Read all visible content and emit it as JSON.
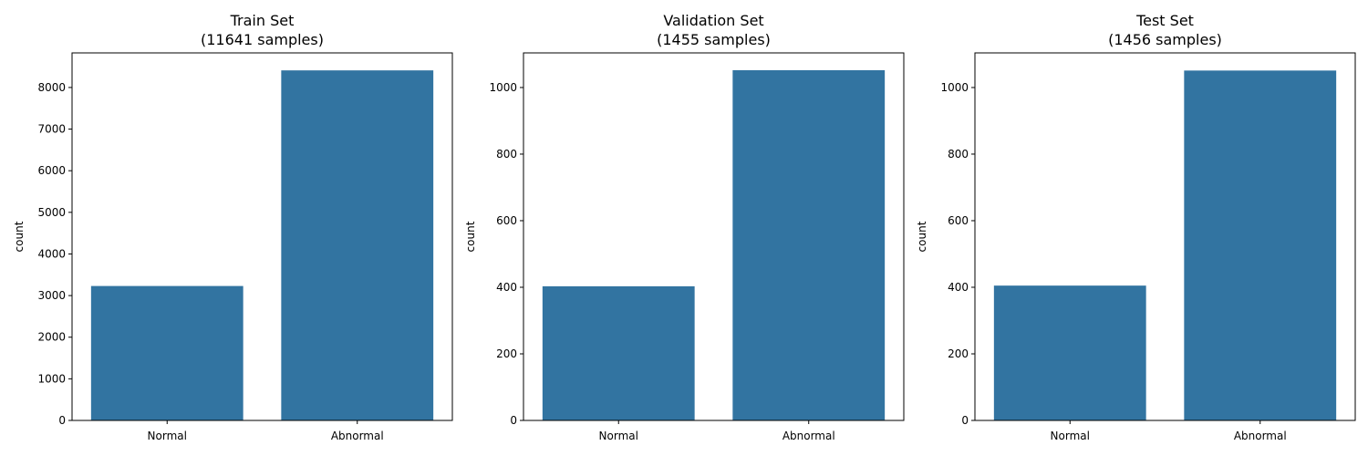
{
  "chart_data": [
    {
      "type": "bar",
      "title_line1": "Train Set",
      "title_line2": "(11641 samples)",
      "categories": [
        "Normal",
        "Abnormal"
      ],
      "values": [
        3230,
        8411
      ],
      "xlabel": "",
      "ylabel": "count",
      "ylim": [
        0,
        8831
      ],
      "yticks": [
        0,
        1000,
        2000,
        3000,
        4000,
        5000,
        6000,
        7000,
        8000
      ],
      "bar_color": "#3274a1",
      "grid": false
    },
    {
      "type": "bar",
      "title_line1": "Validation Set",
      "title_line2": "(1455 samples)",
      "categories": [
        "Normal",
        "Abnormal"
      ],
      "values": [
        403,
        1052
      ],
      "xlabel": "",
      "ylabel": "count",
      "ylim": [
        0,
        1104
      ],
      "yticks": [
        0,
        200,
        400,
        600,
        800,
        1000
      ],
      "bar_color": "#3274a1",
      "grid": false
    },
    {
      "type": "bar",
      "title_line1": "Test Set",
      "title_line2": "(1456 samples)",
      "categories": [
        "Normal",
        "Abnormal"
      ],
      "values": [
        405,
        1051
      ],
      "xlabel": "",
      "ylabel": "count",
      "ylim": [
        0,
        1104
      ],
      "yticks": [
        0,
        200,
        400,
        600,
        800,
        1000
      ],
      "bar_color": "#3274a1",
      "grid": false
    }
  ]
}
